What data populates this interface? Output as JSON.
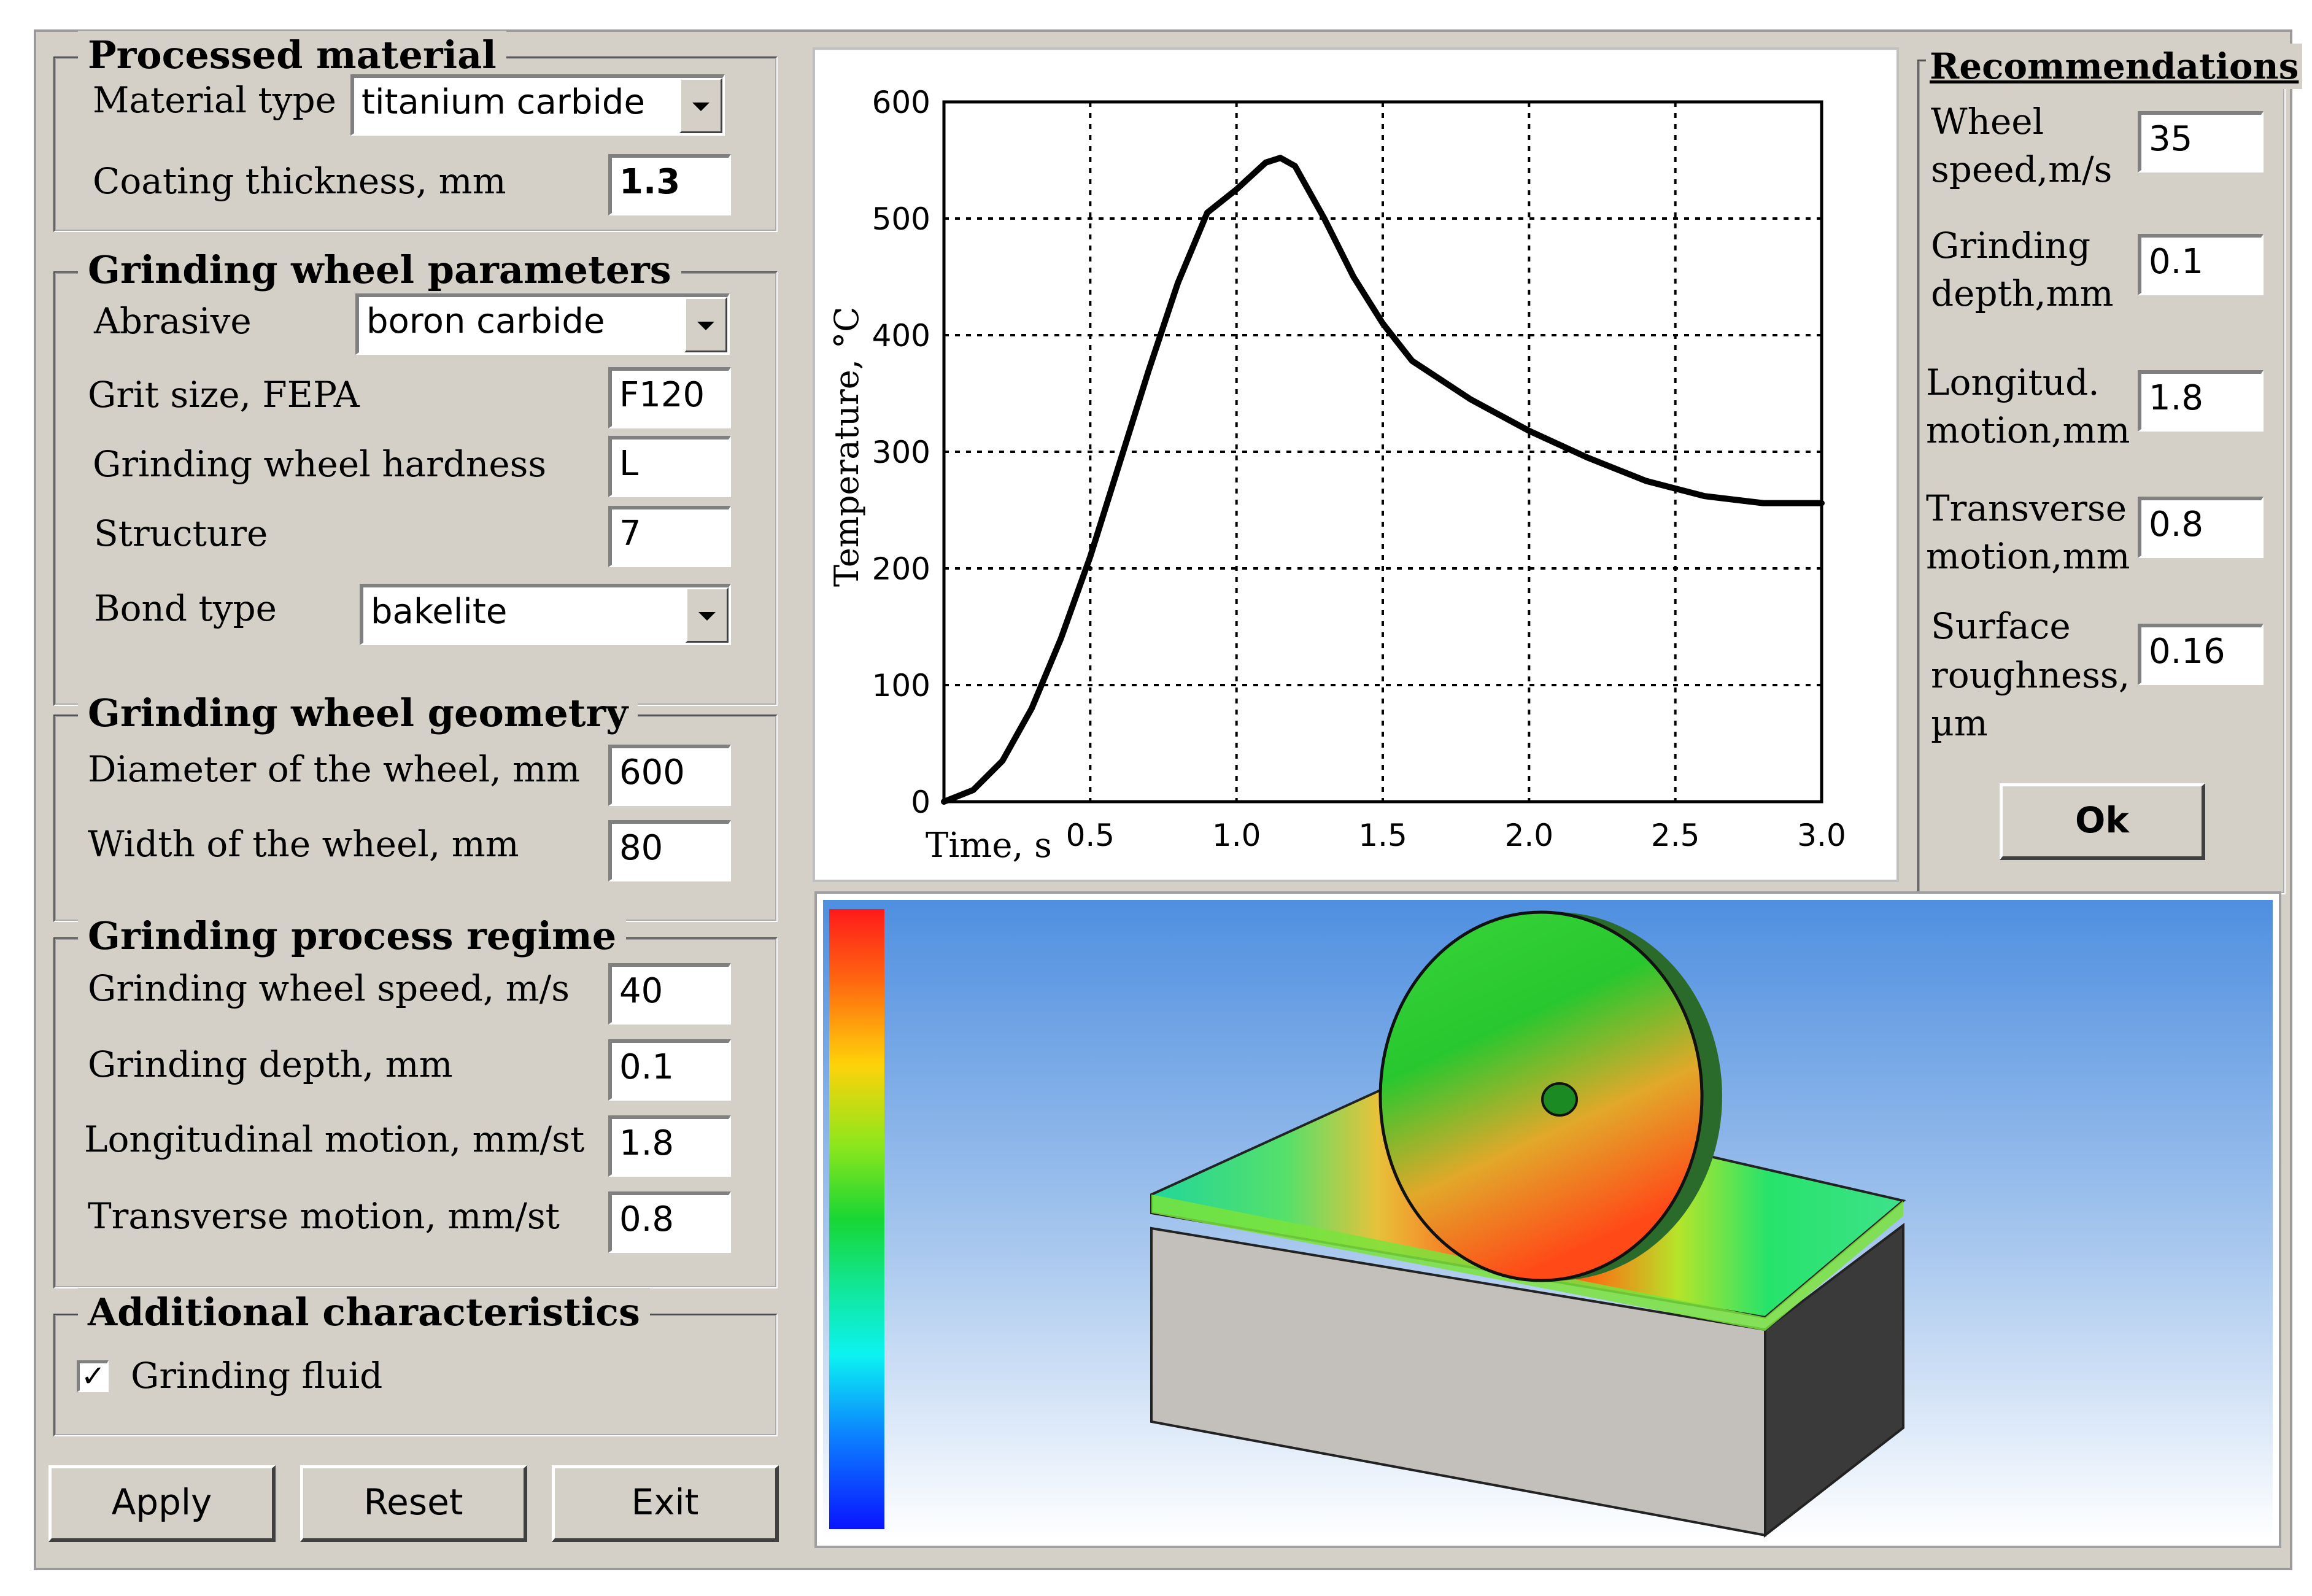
{
  "processed_material": {
    "title": "Processed material",
    "material_type_label": "Material type",
    "material_type_value": "titanium carbide",
    "coating_label": "Coating thickness, mm",
    "coating_value": "1.3"
  },
  "wheel_params": {
    "title": "Grinding wheel parameters",
    "abrasive_label": "Abrasive",
    "abrasive_value": "boron carbide",
    "grit_label": "Grit size, FEPA",
    "grit_value": "F120",
    "hardness_label": "Grinding wheel hardness",
    "hardness_value": "L",
    "structure_label": "Structure",
    "structure_value": "7",
    "bond_label": "Bond type",
    "bond_value": "bakelite"
  },
  "wheel_geometry": {
    "title": "Grinding wheel geometry",
    "diameter_label": "Diameter of the wheel, mm",
    "diameter_value": "600",
    "width_label": "Width of the wheel, mm",
    "width_value": "80"
  },
  "process_regime": {
    "title": "Grinding process regime",
    "speed_label": "Grinding wheel speed, m/s",
    "speed_value": "40",
    "depth_label": "Grinding depth, mm",
    "depth_value": "0.1",
    "longitudinal_label": "Longitudinal motion, mm/st",
    "longitudinal_value": "1.8",
    "transverse_label": "Transverse motion, mm/st",
    "transverse_value": "0.8"
  },
  "additional": {
    "title": "Additional characteristics",
    "fluid_label": "Grinding fluid",
    "fluid_checked": true
  },
  "buttons": {
    "apply": "Apply",
    "reset": "Reset",
    "exit": "Exit",
    "ok": "Ok"
  },
  "recommendations": {
    "title": "Recommendations",
    "speed_label_1": "Wheel",
    "speed_label_2": "speed,m/s",
    "speed_value": "35",
    "depth_label_1": "Grinding",
    "depth_label_2": "depth,mm",
    "depth_value": "0.1",
    "longitudinal_label_1": "Longitud.",
    "longitudinal_label_2": "motion,mm",
    "longitudinal_value": "1.8",
    "transverse_label_1": "Transverse",
    "transverse_label_2": "motion,mm",
    "transverse_value": "0.8",
    "roughness_label_1": "Surface",
    "roughness_label_2": "roughness,",
    "roughness_label_3": "µm",
    "roughness_value": "0.16"
  },
  "chart_data": {
    "type": "line",
    "xlabel": "Time, s",
    "ylabel": "Temperature, °C",
    "xlim": [
      0,
      3.0
    ],
    "ylim": [
      0,
      600
    ],
    "xticks": [
      "0.5",
      "1.0",
      "1.5",
      "2.0",
      "2.5",
      "3.0"
    ],
    "yticks": [
      "0",
      "100",
      "200",
      "300",
      "400",
      "500",
      "600"
    ],
    "grid": true,
    "series": [
      {
        "x": [
          0,
          0.1,
          0.2,
          0.3,
          0.4,
          0.5,
          0.6,
          0.7,
          0.8,
          0.9,
          1.0,
          1.1,
          1.15,
          1.2,
          1.3,
          1.4,
          1.5,
          1.6,
          1.8,
          2.0,
          2.2,
          2.4,
          2.6,
          2.8,
          3.0
        ],
        "y": [
          0,
          10,
          35,
          80,
          140,
          210,
          290,
          370,
          445,
          505,
          525,
          548,
          552,
          545,
          500,
          450,
          410,
          378,
          345,
          318,
          295,
          275,
          262,
          256,
          256
        ]
      }
    ]
  },
  "colors": {
    "window_bg": "#d4d0c8",
    "curve": "#000000"
  }
}
